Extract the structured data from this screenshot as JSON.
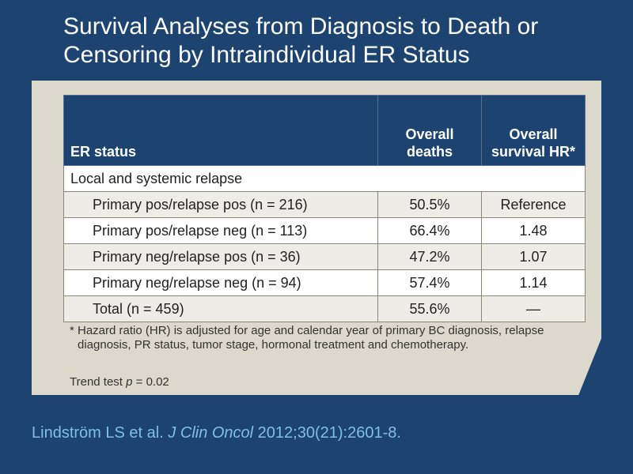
{
  "title": "Survival Analyses from Diagnosis to Death or Censoring by Intraindividual ER Status",
  "table": {
    "headers": [
      "ER status",
      "Overall deaths",
      "Overall survival HR*"
    ],
    "group_label": "Local and systemic relapse",
    "rows": [
      {
        "label": "Primary pos/relapse pos (n = 216)",
        "deaths": "50.5%",
        "hr": "Reference"
      },
      {
        "label": "Primary pos/relapse neg (n = 113)",
        "deaths": "66.4%",
        "hr": "1.48"
      },
      {
        "label": "Primary neg/relapse pos (n = 36)",
        "deaths": "47.2%",
        "hr": "1.07"
      },
      {
        "label": "Primary neg/relapse neg (n = 94)",
        "deaths": "57.4%",
        "hr": "1.14"
      },
      {
        "label": "Total (n = 459)",
        "deaths": "55.6%",
        "hr": "—"
      }
    ]
  },
  "footnote": {
    "marker": "*",
    "text": "Hazard ratio (HR) is adjusted for age and calendar year of primary BC diagnosis, relapse diagnosis, PR status, tumor stage, hormonal treatment and chemotherapy."
  },
  "trend": {
    "prefix": "Trend test ",
    "var": "p",
    "suffix": " = 0.02"
  },
  "citation": {
    "authors": "Lindström LS et al. ",
    "journal": "J Clin Oncol",
    "details": " 2012;30(21):2601-8."
  }
}
